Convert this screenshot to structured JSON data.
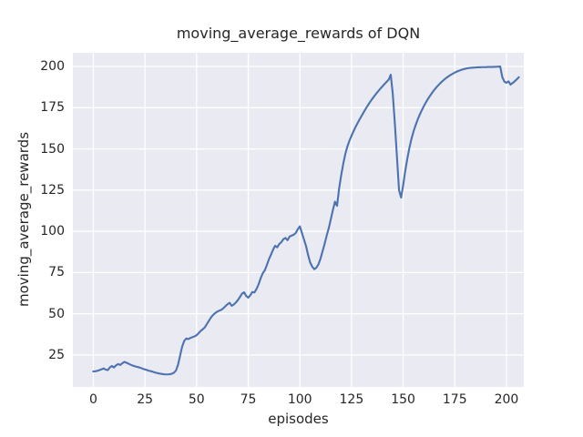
{
  "figure": {
    "title": "moving_average_rewards of DQN"
  },
  "chart_data": {
    "type": "line",
    "title": "moving_average_rewards of DQN",
    "xlabel": "episodes",
    "ylabel": "moving_average_rewards",
    "xticks": [
      0,
      25,
      50,
      75,
      100,
      125,
      150,
      175,
      200
    ],
    "yticks": [
      25,
      50,
      75,
      100,
      125,
      150,
      175,
      200
    ],
    "xlim": [
      -9.9,
      208.4
    ],
    "ylim": [
      5.6,
      208.3
    ],
    "grid": true,
    "legend": "none",
    "style": "seaborn-darkgrid",
    "colors": {
      "line": "#4C72B0",
      "axes_background": "#EAEAF2",
      "grid": "#FFFFFF",
      "text": "#262626"
    },
    "series": [
      {
        "name": "moving_average_rewards",
        "x_start": 0,
        "x_step": 1,
        "values": [
          15.0,
          15.1,
          15.4,
          15.8,
          16.3,
          16.8,
          16.1,
          15.8,
          17.4,
          18.3,
          17.4,
          18.7,
          19.5,
          18.9,
          19.9,
          20.8,
          20.3,
          19.7,
          19.1,
          18.6,
          18.2,
          17.8,
          17.5,
          17.1,
          16.6,
          16.2,
          15.8,
          15.4,
          15.1,
          14.7,
          14.3,
          14.0,
          13.7,
          13.5,
          13.3,
          13.2,
          13.2,
          13.3,
          13.6,
          14.2,
          15.5,
          19.0,
          24.5,
          30.0,
          33.5,
          35.0,
          34.6,
          35.3,
          35.8,
          36.3,
          37.0,
          38.2,
          39.6,
          40.6,
          41.8,
          43.8,
          45.8,
          47.8,
          49.3,
          50.4,
          51.3,
          51.9,
          52.4,
          53.4,
          54.6,
          55.8,
          56.6,
          54.8,
          55.6,
          56.8,
          58.3,
          60.2,
          62.2,
          63.0,
          60.8,
          59.8,
          61.2,
          63.2,
          62.9,
          65.0,
          67.8,
          71.5,
          74.5,
          76.3,
          79.5,
          83.0,
          85.8,
          88.8,
          91.2,
          90.3,
          92.3,
          93.4,
          95.2,
          96.0,
          94.6,
          96.8,
          97.4,
          97.9,
          99.0,
          101.3,
          103.0,
          99.0,
          95.0,
          91.0,
          85.5,
          81.0,
          78.5,
          77.0,
          78.0,
          80.0,
          83.5,
          88.0,
          92.5,
          97.5,
          102.0,
          107.5,
          113.0,
          118.0,
          115.5,
          126.0,
          134.0,
          141.0,
          147.0,
          151.5,
          155.0,
          158.0,
          160.8,
          163.4,
          165.8,
          168.1,
          170.3,
          172.5,
          174.6,
          176.6,
          178.5,
          180.3,
          182.0,
          183.6,
          185.1,
          186.6,
          188.0,
          189.4,
          190.7,
          192.0,
          195.0,
          183.0,
          165.0,
          145.0,
          125.0,
          120.5,
          128.0,
          136.5,
          144.0,
          150.5,
          156.0,
          160.5,
          164.3,
          167.7,
          170.7,
          173.4,
          175.9,
          178.2,
          180.3,
          182.2,
          184.0,
          185.7,
          187.2,
          188.6,
          189.9,
          191.1,
          192.2,
          193.2,
          194.1,
          194.9,
          195.6,
          196.3,
          196.9,
          197.4,
          197.9,
          198.3,
          198.6,
          198.9,
          199.1,
          199.2,
          199.3,
          199.4,
          199.5,
          199.5,
          199.6,
          199.6,
          199.6,
          199.7,
          199.7,
          199.7,
          199.8,
          199.8,
          199.9,
          200.0,
          193.5,
          190.8,
          190.1,
          191.0,
          189.0,
          190.0,
          191.0,
          192.2,
          193.5
        ]
      }
    ]
  }
}
